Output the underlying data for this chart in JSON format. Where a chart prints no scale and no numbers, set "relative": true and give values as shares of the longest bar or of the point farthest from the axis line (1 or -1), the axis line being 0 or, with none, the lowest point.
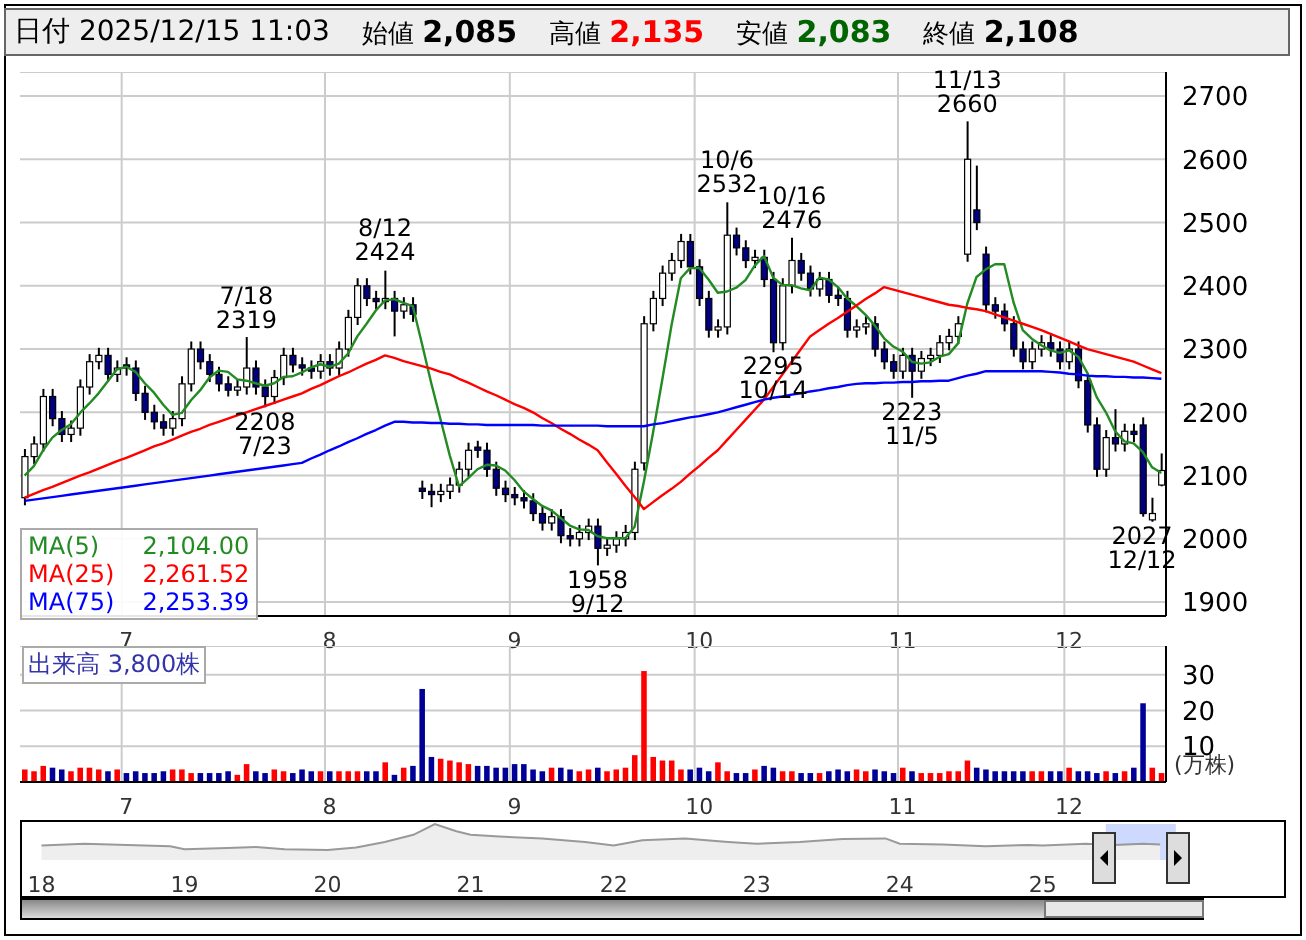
{
  "chart_data": [
    {
      "type": "candlestick",
      "title": "日付 2025/12/15 11:03",
      "grid": true,
      "legend": "bottom left",
      "marker": "none",
      "annotations": [
        "始値 2,085",
        "高値 2,135",
        "安値 2,083",
        "終値 2,108",
        {
          "text": "7/18 2319",
          "y": 2319
        },
        {
          "text": "2208 7/23",
          "y": 2208
        },
        {
          "text": "8/12 2424",
          "y": 2424
        },
        {
          "text": "1958 9/12",
          "y": 1958
        },
        {
          "text": "10/6 2532",
          "y": 2532
        },
        {
          "text": "2295 10/14",
          "y": 2295
        },
        {
          "text": "10/16 2476",
          "y": 2476
        },
        {
          "text": "2223 11/5",
          "y": 2223
        },
        {
          "text": "11/13 2660",
          "y": 2660
        },
        {
          "text": "2027 12/12",
          "y": 2027
        },
        "2,104.00",
        "2,261.52",
        "2,253.39"
      ],
      "categories": [
        null,
        null,
        null,
        null,
        null,
        null,
        null,
        null,
        null,
        null,
        null,
        "7",
        null,
        null,
        null,
        null,
        null,
        null,
        null,
        null,
        null,
        null,
        null,
        null,
        null,
        null,
        null,
        null,
        null,
        null,
        null,
        null,
        null,
        "8",
        null,
        null,
        null,
        null,
        null,
        null,
        null,
        null,
        null,
        null,
        null,
        null,
        null,
        null,
        null,
        null,
        null,
        null,
        null,
        "9",
        null,
        null,
        null,
        null,
        null,
        null,
        null,
        null,
        null,
        null,
        null,
        null,
        null,
        null,
        null,
        null,
        null,
        null,
        null,
        "10",
        null,
        null,
        null,
        null,
        null,
        null,
        null,
        null,
        null,
        null,
        null,
        null,
        null,
        null,
        null,
        null,
        null,
        null,
        null,
        null,
        null,
        "11",
        null,
        null,
        null,
        null,
        null,
        null,
        null,
        null,
        null,
        null,
        null,
        null,
        null,
        null,
        null,
        null,
        null,
        "12",
        null,
        null,
        null,
        null,
        null,
        null,
        null,
        null,
        null,
        null
      ],
      "ohlc": [
        [
          2065,
          2142,
          2053,
          2130
        ],
        [
          2130,
          2162,
          2118,
          2150
        ],
        [
          2150,
          2237,
          2138,
          2225
        ],
        [
          2225,
          2237,
          2178,
          2190
        ],
        [
          2190,
          2202,
          2153,
          2165
        ],
        [
          2165,
          2187,
          2153,
          2175
        ],
        [
          2175,
          2252,
          2163,
          2240
        ],
        [
          2240,
          2292,
          2228,
          2280
        ],
        [
          2280,
          2302,
          2268,
          2290
        ],
        [
          2290,
          2302,
          2248,
          2260
        ],
        [
          2260,
          2282,
          2248,
          2270
        ],
        [
          2275,
          2287,
          2258,
          2270
        ],
        [
          2270,
          2282,
          2218,
          2230
        ],
        [
          2230,
          2242,
          2188,
          2200
        ],
        [
          2200,
          2212,
          2173,
          2185
        ],
        [
          2185,
          2197,
          2163,
          2175
        ],
        [
          2175,
          2202,
          2163,
          2190
        ],
        [
          2190,
          2257,
          2178,
          2245
        ],
        [
          2245,
          2312,
          2233,
          2300
        ],
        [
          2300,
          2312,
          2268,
          2280
        ],
        [
          2280,
          2292,
          2248,
          2260
        ],
        [
          2260,
          2272,
          2233,
          2245
        ],
        [
          2245,
          2257,
          2225,
          2235
        ],
        [
          2235,
          2252,
          2226,
          2240
        ],
        [
          2240,
          2319,
          2228,
          2270
        ],
        [
          2270,
          2282,
          2228,
          2240
        ],
        [
          2240,
          2252,
          2208,
          2225
        ],
        [
          2225,
          2267,
          2213,
          2255
        ],
        [
          2255,
          2302,
          2243,
          2290
        ],
        [
          2290,
          2302,
          2263,
          2275
        ],
        [
          2275,
          2287,
          2258,
          2270
        ],
        [
          2270,
          2282,
          2253,
          2265
        ],
        [
          2265,
          2292,
          2253,
          2280
        ],
        [
          2280,
          2292,
          2258,
          2270
        ],
        [
          2270,
          2312,
          2258,
          2300
        ],
        [
          2300,
          2362,
          2288,
          2350
        ],
        [
          2350,
          2412,
          2338,
          2400
        ],
        [
          2400,
          2412,
          2368,
          2380
        ],
        [
          2380,
          2392,
          2363,
          2375
        ],
        [
          2375,
          2424,
          2363,
          2380
        ],
        [
          2380,
          2392,
          2320,
          2360
        ],
        [
          2360,
          2382,
          2348,
          2370
        ],
        [
          2370,
          2382,
          2343,
          2355
        ],
        [
          2080,
          2092,
          2063,
          2075
        ],
        [
          2075,
          2087,
          2050,
          2070
        ],
        [
          2070,
          2087,
          2058,
          2075
        ],
        [
          2075,
          2097,
          2063,
          2085
        ],
        [
          2085,
          2122,
          2073,
          2110
        ],
        [
          2110,
          2152,
          2098,
          2140
        ],
        [
          2145,
          2155,
          2128,
          2140
        ],
        [
          2140,
          2152,
          2098,
          2110
        ],
        [
          2110,
          2122,
          2068,
          2080
        ],
        [
          2080,
          2092,
          2058,
          2070
        ],
        [
          2070,
          2082,
          2053,
          2065
        ],
        [
          2065,
          2077,
          2048,
          2060
        ],
        [
          2060,
          2072,
          2028,
          2040
        ],
        [
          2040,
          2052,
          2013,
          2025
        ],
        [
          2025,
          2047,
          2013,
          2035
        ],
        [
          2035,
          2047,
          1993,
          2005
        ],
        [
          2005,
          2017,
          1988,
          2000
        ],
        [
          2000,
          2022,
          1988,
          2010
        ],
        [
          2010,
          2032,
          1998,
          2020
        ],
        [
          2020,
          2032,
          1958,
          1985
        ],
        [
          1985,
          2002,
          1973,
          1990
        ],
        [
          1990,
          2012,
          1978,
          2000
        ],
        [
          2000,
          2022,
          1988,
          2010
        ],
        [
          2010,
          2122,
          1998,
          2110
        ],
        [
          2120,
          2352,
          2108,
          2340
        ],
        [
          2340,
          2392,
          2328,
          2380
        ],
        [
          2380,
          2432,
          2368,
          2420
        ],
        [
          2420,
          2452,
          2408,
          2440
        ],
        [
          2440,
          2482,
          2428,
          2470
        ],
        [
          2470,
          2482,
          2418,
          2430
        ],
        [
          2430,
          2442,
          2368,
          2380
        ],
        [
          2380,
          2392,
          2318,
          2330
        ],
        [
          2330,
          2347,
          2318,
          2335
        ],
        [
          2335,
          2532,
          2323,
          2480
        ],
        [
          2480,
          2492,
          2448,
          2460
        ],
        [
          2460,
          2472,
          2428,
          2440
        ],
        [
          2440,
          2457,
          2428,
          2445
        ],
        [
          2445,
          2457,
          2398,
          2410
        ],
        [
          2410,
          2422,
          2295,
          2310
        ],
        [
          2310,
          2412,
          2298,
          2400
        ],
        [
          2400,
          2476,
          2388,
          2440
        ],
        [
          2440,
          2452,
          2408,
          2420
        ],
        [
          2420,
          2432,
          2383,
          2395
        ],
        [
          2395,
          2422,
          2383,
          2410
        ],
        [
          2410,
          2422,
          2373,
          2385
        ],
        [
          2385,
          2397,
          2368,
          2380
        ],
        [
          2380,
          2392,
          2318,
          2330
        ],
        [
          2330,
          2347,
          2318,
          2335
        ],
        [
          2335,
          2352,
          2323,
          2340
        ],
        [
          2340,
          2352,
          2288,
          2300
        ],
        [
          2300,
          2312,
          2268,
          2280
        ],
        [
          2280,
          2292,
          2253,
          2265
        ],
        [
          2265,
          2302,
          2253,
          2290
        ],
        [
          2290,
          2302,
          2223,
          2265
        ],
        [
          2265,
          2297,
          2253,
          2285
        ],
        [
          2285,
          2302,
          2273,
          2290
        ],
        [
          2290,
          2322,
          2278,
          2310
        ],
        [
          2310,
          2332,
          2298,
          2320
        ],
        [
          2320,
          2352,
          2308,
          2340
        ],
        [
          2450,
          2660,
          2438,
          2600
        ],
        [
          2520,
          2590,
          2488,
          2500
        ],
        [
          2450,
          2462,
          2358,
          2370
        ],
        [
          2370,
          2382,
          2348,
          2360
        ],
        [
          2360,
          2372,
          2328,
          2340
        ],
        [
          2340,
          2352,
          2288,
          2300
        ],
        [
          2300,
          2312,
          2268,
          2280
        ],
        [
          2280,
          2312,
          2268,
          2300
        ],
        [
          2300,
          2322,
          2288,
          2310
        ],
        [
          2310,
          2322,
          2288,
          2300
        ],
        [
          2300,
          2312,
          2268,
          2280
        ],
        [
          2280,
          2312,
          2268,
          2300
        ],
        [
          2300,
          2312,
          2238,
          2250
        ],
        [
          2250,
          2262,
          2168,
          2180
        ],
        [
          2180,
          2192,
          2098,
          2110
        ],
        [
          2110,
          2172,
          2098,
          2160
        ],
        [
          2160,
          2205,
          2138,
          2150
        ],
        [
          2150,
          2182,
          2138,
          2170
        ],
        [
          2170,
          2182,
          2153,
          2165
        ],
        [
          2180,
          2192,
          2035,
          2040
        ],
        [
          2030,
          2065,
          2027,
          2040
        ],
        [
          2085,
          2135,
          2083,
          2108
        ]
      ],
      "colors": [
        "#ffffff",
        "#ffffff",
        "#ffffff",
        "#000080",
        "#000080",
        "#ffffff",
        "#ffffff",
        "#ffffff",
        "#ffffff",
        "#000080",
        "#ffffff",
        "#000080",
        "#000080",
        "#000080",
        "#000080",
        "#000080",
        "#ffffff",
        "#ffffff",
        "#ffffff",
        "#000080",
        "#000080",
        "#000080",
        "#000080",
        "#ffffff",
        "#ffffff",
        "#000080",
        "#000080",
        "#ffffff",
        "#ffffff",
        "#000080",
        "#000080",
        "#000080",
        "#ffffff",
        "#000080",
        "#ffffff",
        "#ffffff",
        "#ffffff",
        "#000080",
        "#000080",
        "#ffffff",
        "#000080",
        "#ffffff",
        "#000080",
        "#000080",
        "#000080",
        "#ffffff",
        "#ffffff",
        "#ffffff",
        "#ffffff",
        "#000080",
        "#000080",
        "#000080",
        "#000080",
        "#000080",
        "#000080",
        "#000080",
        "#000080",
        "#ffffff",
        "#000080",
        "#000080",
        "#ffffff",
        "#ffffff",
        "#000080",
        "#ffffff",
        "#ffffff",
        "#ffffff",
        "#ffffff",
        "#ffffff",
        "#ffffff",
        "#ffffff",
        "#ffffff",
        "#ffffff",
        "#000080",
        "#000080",
        "#000080",
        "#ffffff",
        "#ffffff",
        "#000080",
        "#000080",
        "#ffffff",
        "#000080",
        "#000080",
        "#ffffff",
        "#ffffff",
        "#000080",
        "#000080",
        "#ffffff",
        "#000080",
        "#000080",
        "#000080",
        "#ffffff",
        "#ffffff",
        "#000080",
        "#000080",
        "#000080",
        "#ffffff",
        "#000080",
        "#ffffff",
        "#ffffff",
        "#ffffff",
        "#ffffff",
        "#ffffff",
        "#ffffff",
        "#000080",
        "#000080",
        "#000080",
        "#000080",
        "#000080",
        "#000080",
        "#ffffff",
        "#ffffff",
        "#000080",
        "#000080",
        "#ffffff",
        "#000080",
        "#000080",
        "#000080",
        "#ffffff",
        "#000080",
        "#ffffff",
        "#000080",
        "#000080",
        "#ffffff",
        "#ffffff"
      ],
      "series": [
        {
          "name": "MA(5)",
          "type": "line",
          "color": "#228b22",
          "values": [
            2100,
            2115,
            2140,
            2160,
            2172,
            2181,
            2199,
            2214,
            2230,
            2249,
            2268,
            2272,
            2264,
            2246,
            2231,
            2212,
            2196,
            2199,
            2219,
            2235,
            2255,
            2266,
            2264,
            2252,
            2250,
            2246,
            2242,
            2246,
            2256,
            2257,
            2263,
            2271,
            2276,
            2272,
            2277,
            2293,
            2320,
            2340,
            2361,
            2377,
            2379,
            2373,
            2368,
            2308,
            2246,
            2189,
            2132,
            2083,
            2096,
            2110,
            2117,
            2116,
            2108,
            2093,
            2075,
            2063,
            2052,
            2045,
            2033,
            2021,
            2015,
            2014,
            2004,
            2001,
            2001,
            2001,
            2019,
            2090,
            2168,
            2252,
            2338,
            2412,
            2428,
            2428,
            2410,
            2389,
            2391,
            2397,
            2409,
            2432,
            2447,
            2413,
            2401,
            2401,
            2396,
            2393,
            2413,
            2410,
            2398,
            2380,
            2368,
            2354,
            2337,
            2317,
            2304,
            2296,
            2280,
            2277,
            2279,
            2288,
            2292,
            2309,
            2372,
            2414,
            2426,
            2434,
            2434,
            2374,
            2330,
            2316,
            2306,
            2298,
            2294,
            2298,
            2288,
            2262,
            2224,
            2200,
            2170,
            2154,
            2151,
            2137,
            2113,
            2104
          ]
        },
        {
          "name": "MA(25)",
          "type": "line",
          "color": "#ff0000",
          "values": [
            2065,
            2071,
            2077,
            2082,
            2088,
            2094,
            2100,
            2105,
            2111,
            2117,
            2123,
            2128,
            2134,
            2140,
            2146,
            2151,
            2157,
            2163,
            2169,
            2174,
            2180,
            2185,
            2190,
            2195,
            2200,
            2205,
            2210,
            2215,
            2220,
            2225,
            2230,
            2237,
            2243,
            2250,
            2257,
            2263,
            2270,
            2277,
            2283,
            2290,
            2286,
            2281,
            2277,
            2273,
            2269,
            2264,
            2260,
            2253,
            2247,
            2240,
            2233,
            2227,
            2220,
            2213,
            2207,
            2200,
            2191,
            2183,
            2174,
            2166,
            2157,
            2149,
            2140,
            2121,
            2103,
            2084,
            2066,
            2047,
            2058,
            2069,
            2079,
            2090,
            2103,
            2115,
            2128,
            2140,
            2156,
            2172,
            2188,
            2204,
            2220,
            2240,
            2260,
            2280,
            2300,
            2320,
            2330,
            2340,
            2349,
            2359,
            2369,
            2379,
            2388,
            2398,
            2394,
            2390,
            2386,
            2382,
            2378,
            2374,
            2370,
            2368,
            2365,
            2363,
            2360,
            2355,
            2350,
            2345,
            2340,
            2335,
            2330,
            2324,
            2318,
            2312,
            2306,
            2300,
            2296,
            2292,
            2288,
            2284,
            2280,
            2274,
            2268,
            2262
          ]
        },
        {
          "name": "MA(75)",
          "type": "line",
          "color": "#0000ff",
          "values": [
            2060,
            2062,
            2064,
            2066,
            2068,
            2070,
            2072,
            2074,
            2076,
            2078,
            2080,
            2082,
            2084,
            2086,
            2088,
            2090,
            2092,
            2094,
            2096,
            2098,
            2100,
            2102,
            2104,
            2106,
            2108,
            2110,
            2112,
            2114,
            2116,
            2118,
            2120,
            2127,
            2133,
            2140,
            2146,
            2153,
            2159,
            2166,
            2172,
            2179,
            2185,
            2185,
            2184,
            2184,
            2183,
            2183,
            2182,
            2182,
            2181,
            2181,
            2180,
            2180,
            2180,
            2180,
            2180,
            2180,
            2179,
            2179,
            2179,
            2179,
            2179,
            2179,
            2179,
            2178,
            2178,
            2178,
            2178,
            2178,
            2181,
            2183,
            2186,
            2189,
            2192,
            2194,
            2197,
            2200,
            2204,
            2208,
            2212,
            2216,
            2220,
            2223,
            2225,
            2228,
            2230,
            2233,
            2235,
            2238,
            2240,
            2243,
            2245,
            2246,
            2246,
            2247,
            2247,
            2248,
            2248,
            2249,
            2249,
            2250,
            2250,
            2254,
            2258,
            2261,
            2265,
            2265,
            2265,
            2265,
            2265,
            2265,
            2265,
            2264,
            2263,
            2261,
            2260,
            2258,
            2257,
            2257,
            2256,
            2256,
            2255,
            2255,
            2254,
            2253
          ]
        }
      ],
      "ylim": [
        1878,
        2738
      ],
      "yticks": [
        1900,
        2000,
        2100,
        2200,
        2300,
        2400,
        2500,
        2600,
        2700
      ]
    },
    {
      "type": "bar",
      "title": "出来高 3,800株",
      "ylabel": "(万株)",
      "grid": true,
      "categories": [
        null,
        null,
        null,
        null,
        null,
        null,
        null,
        null,
        null,
        null,
        null,
        "7",
        null,
        null,
        null,
        null,
        null,
        null,
        null,
        null,
        null,
        null,
        null,
        null,
        null,
        null,
        null,
        null,
        null,
        null,
        null,
        null,
        null,
        "8",
        null,
        null,
        null,
        null,
        null,
        null,
        null,
        null,
        null,
        null,
        null,
        null,
        null,
        null,
        null,
        null,
        null,
        null,
        null,
        "9",
        null,
        null,
        null,
        null,
        null,
        null,
        null,
        null,
        null,
        null,
        null,
        null,
        null,
        null,
        null,
        null,
        null,
        null,
        null,
        "10",
        null,
        null,
        null,
        null,
        null,
        null,
        null,
        null,
        null,
        null,
        null,
        null,
        null,
        null,
        null,
        null,
        null,
        null,
        null,
        null,
        null,
        "11",
        null,
        null,
        null,
        null,
        null,
        null,
        null,
        null,
        null,
        null,
        null,
        null,
        null,
        null,
        null,
        null,
        null,
        "12",
        null,
        null,
        null,
        null,
        null,
        null,
        null,
        null,
        null,
        null
      ],
      "values": [
        3.5,
        3,
        4.5,
        4,
        3.5,
        3,
        4,
        4,
        3.5,
        3,
        3.5,
        2.5,
        3,
        2.5,
        2.5,
        3,
        3.5,
        3.5,
        2.5,
        2.5,
        2.5,
        2.5,
        3,
        2,
        5,
        3,
        2.5,
        3.5,
        3,
        2.5,
        3.5,
        3,
        3,
        3,
        3,
        3,
        3,
        3,
        3,
        5.5,
        2,
        4,
        4.5,
        26,
        7,
        6.5,
        6,
        5.5,
        5,
        4.5,
        4.5,
        4,
        4,
        5,
        5,
        3.5,
        3,
        4,
        4,
        3.5,
        3,
        3.5,
        4,
        3,
        3.5,
        4,
        7.5,
        31,
        7,
        6,
        6,
        3.5,
        3.5,
        4,
        3,
        5.5,
        3,
        2.5,
        2.5,
        3.5,
        4.5,
        4,
        3,
        3,
        2.5,
        2.5,
        2.5,
        3,
        3.5,
        3,
        3.5,
        3,
        3.5,
        3,
        2.5,
        4,
        3,
        2.5,
        2.5,
        2.5,
        3,
        3,
        6,
        4,
        3.5,
        3,
        3,
        3,
        3,
        3,
        3,
        3,
        3,
        4,
        3,
        3,
        2.5,
        3,
        2.5,
        3,
        4,
        22,
        4,
        2.5
      ],
      "colors": [
        "#ff0000",
        "#ff0000",
        "#ff0000",
        "#000099",
        "#000099",
        "#ff0000",
        "#ff0000",
        "#ff0000",
        "#ff0000",
        "#000099",
        "#ff0000",
        "#000099",
        "#000099",
        "#000099",
        "#000099",
        "#000099",
        "#ff0000",
        "#ff0000",
        "#ff0000",
        "#000099",
        "#000099",
        "#000099",
        "#000099",
        "#ff0000",
        "#ff0000",
        "#000099",
        "#000099",
        "#ff0000",
        "#ff0000",
        "#000099",
        "#000099",
        "#000099",
        "#ff0000",
        "#000099",
        "#ff0000",
        "#ff0000",
        "#ff0000",
        "#000099",
        "#000099",
        "#ff0000",
        "#000099",
        "#ff0000",
        "#000099",
        "#000099",
        "#000099",
        "#ff0000",
        "#ff0000",
        "#ff0000",
        "#ff0000",
        "#000099",
        "#000099",
        "#000099",
        "#000099",
        "#000099",
        "#000099",
        "#000099",
        "#000099",
        "#ff0000",
        "#000099",
        "#000099",
        "#ff0000",
        "#ff0000",
        "#000099",
        "#ff0000",
        "#ff0000",
        "#ff0000",
        "#ff0000",
        "#ff0000",
        "#ff0000",
        "#ff0000",
        "#ff0000",
        "#ff0000",
        "#000099",
        "#000099",
        "#000099",
        "#ff0000",
        "#ff0000",
        "#000099",
        "#000099",
        "#ff0000",
        "#000099",
        "#000099",
        "#ff0000",
        "#ff0000",
        "#000099",
        "#000099",
        "#ff0000",
        "#000099",
        "#000099",
        "#000099",
        "#ff0000",
        "#ff0000",
        "#000099",
        "#000099",
        "#000099",
        "#ff0000",
        "#000099",
        "#ff0000",
        "#ff0000",
        "#ff0000",
        "#ff0000",
        "#ff0000",
        "#ff0000",
        "#000099",
        "#000099",
        "#000099",
        "#000099",
        "#000099",
        "#000099",
        "#ff0000",
        "#ff0000",
        "#000099",
        "#000099",
        "#ff0000",
        "#000099",
        "#000099",
        "#000099",
        "#ff0000",
        "#000099",
        "#ff0000",
        "#000099",
        "#000099",
        "#ff0000",
        "#ff0000"
      ],
      "ylim": [
        0,
        38
      ],
      "yticks": [
        10,
        20,
        30
      ]
    },
    {
      "type": "area",
      "relative": true,
      "color": "#999999",
      "x": [
        2018.0,
        2018.3,
        2018.6,
        2018.9,
        2019.0,
        2019.3,
        2019.5,
        2019.7,
        2020.0,
        2020.2,
        2020.4,
        2020.6,
        2020.75,
        2020.9,
        2021.0,
        2021.2,
        2021.5,
        2021.8,
        2022.0,
        2022.2,
        2022.5,
        2022.8,
        2023.0,
        2023.3,
        2023.6,
        2023.9,
        2024.0,
        2024.3,
        2024.6,
        2024.9,
        2025.0,
        2025.3,
        2025.5,
        2025.7,
        2025.82
      ],
      "values": [
        0.4,
        0.45,
        0.42,
        0.38,
        0.3,
        0.33,
        0.36,
        0.3,
        0.28,
        0.35,
        0.5,
        0.7,
        1,
        0.8,
        0.7,
        0.65,
        0.6,
        0.5,
        0.4,
        0.55,
        0.6,
        0.5,
        0.45,
        0.5,
        0.58,
        0.6,
        0.45,
        0.43,
        0.38,
        0.42,
        0.4,
        0.45,
        0.42,
        0.45,
        0.43
      ],
      "bands": [
        {
          "axis": "x",
          "from": 2025.44,
          "to": 2025.93,
          "color": "#c0d0ff"
        }
      ],
      "xlim": [
        2017.85,
        2026.7
      ],
      "xticks": [
        {
          "value": 2018,
          "label": "18"
        },
        {
          "value": 2019,
          "label": "19"
        },
        {
          "value": 2020,
          "label": "20"
        },
        {
          "value": 2021,
          "label": "21"
        },
        {
          "value": 2022,
          "label": "22"
        },
        {
          "value": 2023,
          "label": "23"
        },
        {
          "value": 2024,
          "label": "24"
        },
        {
          "value": 2025,
          "label": "25"
        }
      ]
    }
  ]
}
